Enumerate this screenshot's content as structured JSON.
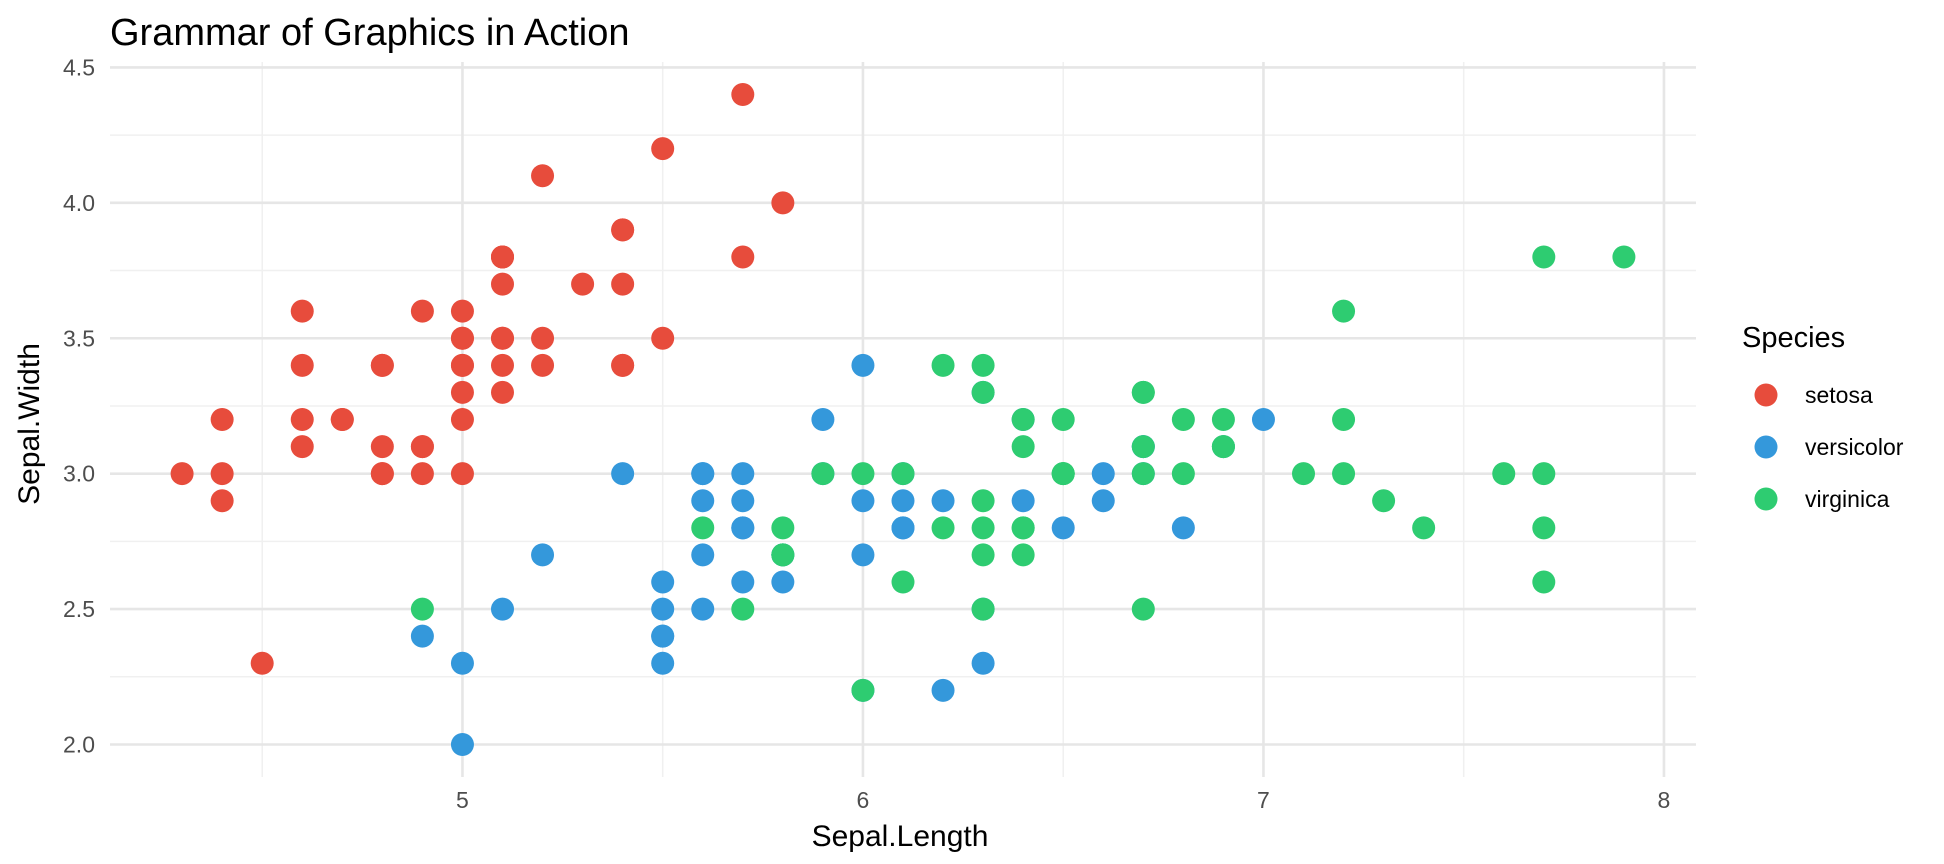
{
  "chart_data": {
    "type": "scatter",
    "title": "Grammar of Graphics in Action",
    "xlabel": "Sepal.Length",
    "ylabel": "Sepal.Width",
    "xlim": [
      4.12,
      8.08
    ],
    "ylim": [
      1.88,
      4.52
    ],
    "x_ticks": [
      5,
      6,
      7,
      8
    ],
    "x_tick_labels": [
      "5",
      "6",
      "7",
      "8"
    ],
    "x_minor_ticks": [
      4.5,
      5.5,
      6.5,
      7.5
    ],
    "y_ticks": [
      2.0,
      2.5,
      3.0,
      3.5,
      4.0,
      4.5
    ],
    "y_tick_labels": [
      "2.0",
      "2.5",
      "3.0",
      "3.5",
      "4.0",
      "4.5"
    ],
    "y_minor_ticks": [
      2.25,
      2.75,
      3.25,
      3.75,
      4.25
    ],
    "grid": true,
    "legend": {
      "title": "Species",
      "position": "right"
    },
    "series": [
      {
        "name": "setosa",
        "color": "#e74c3c",
        "points": [
          [
            5.1,
            3.5
          ],
          [
            4.9,
            3.0
          ],
          [
            4.7,
            3.2
          ],
          [
            4.6,
            3.1
          ],
          [
            5.0,
            3.6
          ],
          [
            5.4,
            3.9
          ],
          [
            4.6,
            3.4
          ],
          [
            5.0,
            3.4
          ],
          [
            4.4,
            2.9
          ],
          [
            4.9,
            3.1
          ],
          [
            5.4,
            3.7
          ],
          [
            4.8,
            3.4
          ],
          [
            4.8,
            3.0
          ],
          [
            4.3,
            3.0
          ],
          [
            5.8,
            4.0
          ],
          [
            5.7,
            4.4
          ],
          [
            5.4,
            3.9
          ],
          [
            5.1,
            3.5
          ],
          [
            5.7,
            3.8
          ],
          [
            5.1,
            3.8
          ],
          [
            5.4,
            3.4
          ],
          [
            5.1,
            3.7
          ],
          [
            4.6,
            3.6
          ],
          [
            5.1,
            3.3
          ],
          [
            4.8,
            3.4
          ],
          [
            5.0,
            3.0
          ],
          [
            5.0,
            3.4
          ],
          [
            5.2,
            3.5
          ],
          [
            5.2,
            3.4
          ],
          [
            4.7,
            3.2
          ],
          [
            4.8,
            3.1
          ],
          [
            5.4,
            3.4
          ],
          [
            5.2,
            4.1
          ],
          [
            5.5,
            4.2
          ],
          [
            4.9,
            3.1
          ],
          [
            5.0,
            3.2
          ],
          [
            5.5,
            3.5
          ],
          [
            4.9,
            3.6
          ],
          [
            4.4,
            3.0
          ],
          [
            5.1,
            3.4
          ],
          [
            5.0,
            3.5
          ],
          [
            4.5,
            2.3
          ],
          [
            4.4,
            3.2
          ],
          [
            5.0,
            3.5
          ],
          [
            5.1,
            3.8
          ],
          [
            4.8,
            3.0
          ],
          [
            5.1,
            3.8
          ],
          [
            4.6,
            3.2
          ],
          [
            5.3,
            3.7
          ],
          [
            5.0,
            3.3
          ]
        ]
      },
      {
        "name": "versicolor",
        "color": "#3498db",
        "points": [
          [
            7.0,
            3.2
          ],
          [
            6.4,
            3.2
          ],
          [
            6.9,
            3.1
          ],
          [
            5.5,
            2.3
          ],
          [
            6.5,
            2.8
          ],
          [
            5.7,
            2.8
          ],
          [
            6.3,
            3.3
          ],
          [
            4.9,
            2.4
          ],
          [
            6.6,
            2.9
          ],
          [
            5.2,
            2.7
          ],
          [
            5.0,
            2.0
          ],
          [
            5.9,
            3.0
          ],
          [
            6.0,
            2.2
          ],
          [
            6.1,
            2.9
          ],
          [
            5.6,
            2.9
          ],
          [
            6.7,
            3.1
          ],
          [
            5.6,
            3.0
          ],
          [
            5.8,
            2.7
          ],
          [
            6.2,
            2.2
          ],
          [
            5.6,
            2.5
          ],
          [
            5.9,
            3.2
          ],
          [
            6.1,
            2.8
          ],
          [
            6.3,
            2.5
          ],
          [
            6.1,
            2.8
          ],
          [
            6.4,
            2.9
          ],
          [
            6.6,
            3.0
          ],
          [
            6.8,
            2.8
          ],
          [
            6.7,
            3.0
          ],
          [
            6.0,
            2.9
          ],
          [
            5.7,
            2.6
          ],
          [
            5.5,
            2.4
          ],
          [
            5.5,
            2.4
          ],
          [
            5.8,
            2.7
          ],
          [
            6.0,
            2.7
          ],
          [
            5.4,
            3.0
          ],
          [
            6.0,
            3.4
          ],
          [
            6.7,
            3.1
          ],
          [
            6.3,
            2.3
          ],
          [
            5.6,
            3.0
          ],
          [
            5.5,
            2.5
          ],
          [
            5.5,
            2.6
          ],
          [
            6.1,
            3.0
          ],
          [
            5.8,
            2.6
          ],
          [
            5.0,
            2.3
          ],
          [
            5.6,
            2.7
          ],
          [
            5.7,
            3.0
          ],
          [
            5.7,
            2.9
          ],
          [
            6.2,
            2.9
          ],
          [
            5.1,
            2.5
          ],
          [
            5.7,
            2.8
          ]
        ]
      },
      {
        "name": "virginica",
        "color": "#2ecc71",
        "points": [
          [
            6.3,
            3.3
          ],
          [
            5.8,
            2.7
          ],
          [
            7.1,
            3.0
          ],
          [
            6.3,
            2.9
          ],
          [
            6.5,
            3.0
          ],
          [
            7.6,
            3.0
          ],
          [
            4.9,
            2.5
          ],
          [
            7.3,
            2.9
          ],
          [
            6.7,
            2.5
          ],
          [
            7.2,
            3.6
          ],
          [
            6.5,
            3.2
          ],
          [
            6.4,
            2.7
          ],
          [
            6.8,
            3.0
          ],
          [
            5.7,
            2.5
          ],
          [
            5.8,
            2.8
          ],
          [
            6.4,
            3.2
          ],
          [
            6.5,
            3.0
          ],
          [
            7.7,
            3.8
          ],
          [
            7.7,
            2.6
          ],
          [
            6.0,
            2.2
          ],
          [
            6.9,
            3.2
          ],
          [
            5.6,
            2.8
          ],
          [
            7.7,
            2.8
          ],
          [
            6.3,
            2.7
          ],
          [
            6.7,
            3.3
          ],
          [
            7.2,
            3.2
          ],
          [
            6.2,
            2.8
          ],
          [
            6.1,
            3.0
          ],
          [
            6.4,
            2.8
          ],
          [
            7.2,
            3.0
          ],
          [
            7.4,
            2.8
          ],
          [
            7.9,
            3.8
          ],
          [
            6.4,
            2.8
          ],
          [
            6.3,
            2.8
          ],
          [
            6.1,
            2.6
          ],
          [
            7.7,
            3.0
          ],
          [
            6.3,
            3.4
          ],
          [
            6.4,
            3.1
          ],
          [
            6.0,
            3.0
          ],
          [
            6.9,
            3.1
          ],
          [
            6.7,
            3.1
          ],
          [
            6.9,
            3.1
          ],
          [
            5.8,
            2.7
          ],
          [
            6.8,
            3.2
          ],
          [
            6.7,
            3.3
          ],
          [
            6.7,
            3.0
          ],
          [
            6.3,
            2.5
          ],
          [
            6.5,
            3.0
          ],
          [
            6.2,
            3.4
          ],
          [
            5.9,
            3.0
          ]
        ]
      }
    ]
  }
}
